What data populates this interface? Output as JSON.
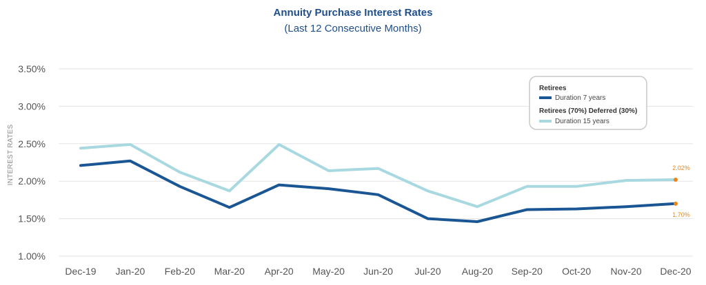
{
  "chart_data": {
    "type": "line",
    "title": "Annuity Purchase Interest Rates",
    "subtitle": "(Last 12 Consecutive Months)",
    "ylabel": "INTEREST RATES",
    "xlabel": "",
    "categories": [
      "Dec-19",
      "Jan-20",
      "Feb-20",
      "Mar-20",
      "Apr-20",
      "May-20",
      "Jun-20",
      "Jul-20",
      "Aug-20",
      "Sep-20",
      "Oct-20",
      "Nov-20",
      "Dec-20"
    ],
    "ylim": [
      1.0,
      3.5
    ],
    "yticks": [
      1.0,
      1.5,
      2.0,
      2.5,
      3.0,
      3.5
    ],
    "ytick_labels": [
      "1.00%",
      "1.50%",
      "2.00%",
      "2.50%",
      "3.00%",
      "3.50%"
    ],
    "grid": true,
    "legend_position": "top-right",
    "series": [
      {
        "name": "Duration 7 years",
        "group": "Retirees",
        "color": "#1a5694",
        "values": [
          2.21,
          2.27,
          1.93,
          1.65,
          1.95,
          1.9,
          1.82,
          1.5,
          1.46,
          1.62,
          1.63,
          1.66,
          1.7
        ],
        "end_label": "1.70%"
      },
      {
        "name": "Duration 15 years",
        "group": "Retirees (70%) Deferred (30%)",
        "color": "#a8d8e0",
        "values": [
          2.44,
          2.49,
          2.12,
          1.87,
          2.49,
          2.14,
          2.17,
          1.87,
          1.66,
          1.93,
          1.93,
          2.01,
          2.02
        ],
        "end_label": "2.02%"
      }
    ],
    "endpoint_color": "#e8861c"
  }
}
